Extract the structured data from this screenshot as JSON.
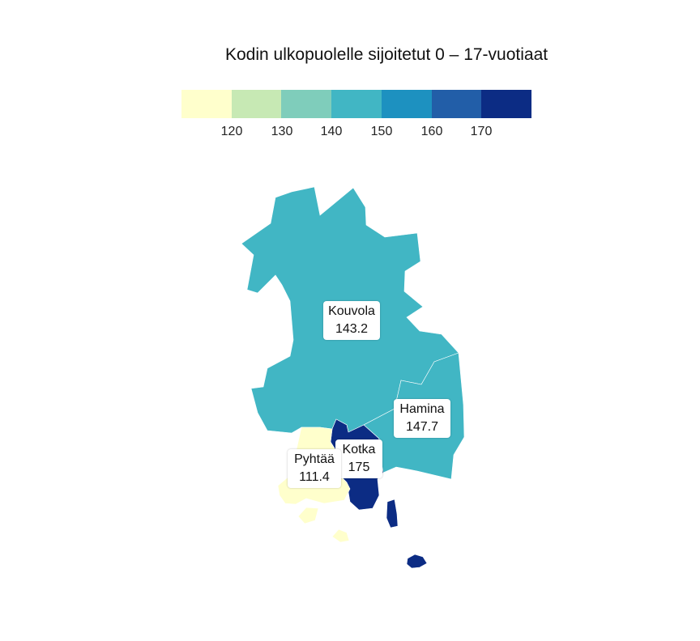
{
  "title": "Kodin ulkopuolelle sijoitetut 0 – 17-vuotiaat",
  "legend": {
    "colors": [
      "#ffffcc",
      "#c7e9b4",
      "#7fcdbb",
      "#41b6c4",
      "#1d91c0",
      "#225ea8",
      "#0c2c84"
    ],
    "ticks": [
      "120",
      "130",
      "140",
      "150",
      "160",
      "170"
    ]
  },
  "regions": [
    {
      "name": "Kouvola",
      "value": "143.2",
      "color": "#41b6c4"
    },
    {
      "name": "Hamina",
      "value": "147.7",
      "color": "#41b6c4"
    },
    {
      "name": "Kotka",
      "value": "175",
      "color": "#0c2c84"
    },
    {
      "name": "Pyhtää",
      "value": "111.4",
      "color": "#ffffcc"
    }
  ]
}
